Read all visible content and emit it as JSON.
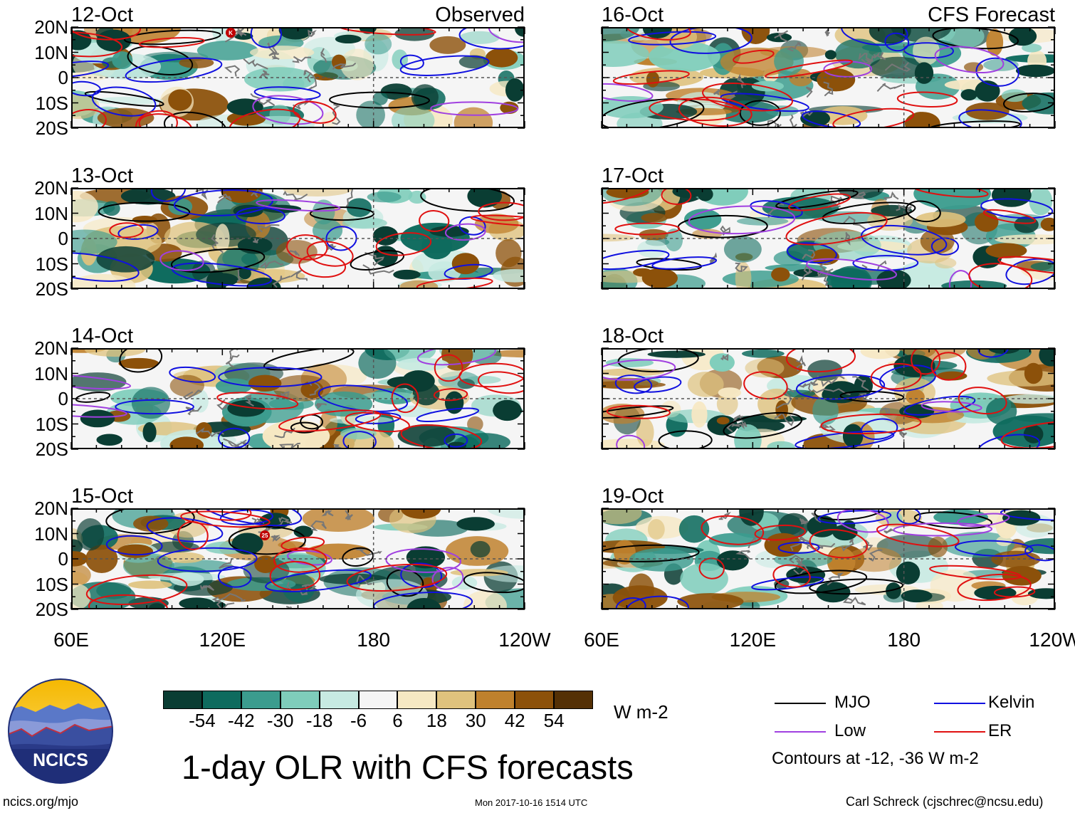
{
  "panels": [
    {
      "date": "12-Oct",
      "corner": "Observed",
      "col": 0,
      "row": 0,
      "tc": "K"
    },
    {
      "date": "13-Oct",
      "corner": "",
      "col": 0,
      "row": 1,
      "tc": ""
    },
    {
      "date": "14-Oct",
      "corner": "",
      "col": 0,
      "row": 2,
      "tc": ""
    },
    {
      "date": "15-Oct",
      "corner": "",
      "col": 0,
      "row": 3,
      "tc": "25"
    },
    {
      "date": "16-Oct",
      "corner": "CFS Forecast",
      "col": 1,
      "row": 0,
      "tc": ""
    },
    {
      "date": "17-Oct",
      "corner": "",
      "col": 1,
      "row": 1,
      "tc": ""
    },
    {
      "date": "18-Oct",
      "corner": "",
      "col": 1,
      "row": 2,
      "tc": ""
    },
    {
      "date": "19-Oct",
      "corner": "",
      "col": 1,
      "row": 3,
      "tc": ""
    }
  ],
  "lat_labels": [
    "20N",
    "10N",
    "0",
    "10S",
    "20S"
  ],
  "lon_labels": [
    "60E",
    "120E",
    "180",
    "120W"
  ],
  "colorbar": {
    "colors": [
      "#0a3d33",
      "#0e6b5e",
      "#3b9c8e",
      "#7fcdbb",
      "#c7eae2",
      "#f5f5f5",
      "#f6e8c3",
      "#dfc27d",
      "#bf812d",
      "#8c510a",
      "#543005"
    ],
    "ticks": [
      "-54",
      "-42",
      "-30",
      "-18",
      "-6",
      "6",
      "18",
      "30",
      "42",
      "54"
    ],
    "units": "W m-2"
  },
  "title": "1-day OLR with CFS forecasts",
  "legend": {
    "items": [
      {
        "label": "MJO",
        "color": "#000000"
      },
      {
        "label": "Kelvin",
        "color": "#1010e0"
      },
      {
        "label": "Low",
        "color": "#a040e0"
      },
      {
        "label": "ER",
        "color": "#e01010"
      }
    ],
    "note": "Contours at -12, -36 W m-2"
  },
  "logo_text": "NCICS",
  "footer": {
    "left": "ncics.org/mjo",
    "center": "Mon 2017-10-16 1514 UTC",
    "right": "Carl Schreck (cjschrec@ncsu.edu)"
  }
}
